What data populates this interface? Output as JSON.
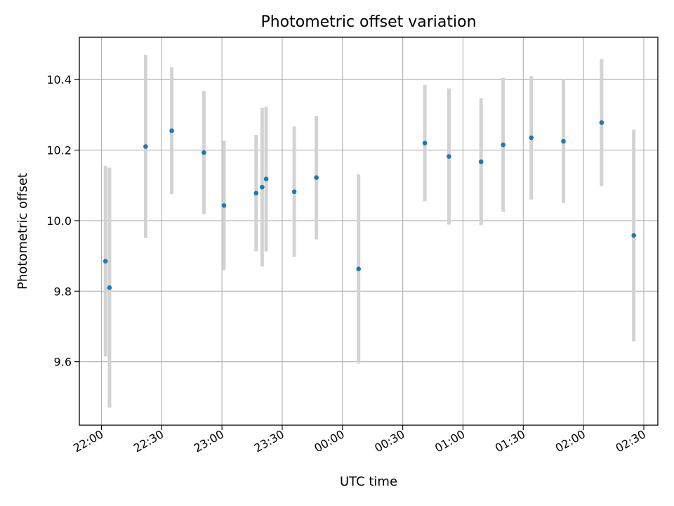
{
  "chart_data": {
    "type": "scatter",
    "title": "Photometric offset variation",
    "xlabel": "UTC time",
    "ylabel": "Photometric offset",
    "x_unit": "UTC time (HH:MM)",
    "x_ticks": [
      "22:00",
      "22:30",
      "23:00",
      "23:30",
      "00:00",
      "00:30",
      "01:00",
      "01:30",
      "02:00",
      "02:30"
    ],
    "y_ticks": [
      9.6,
      9.8,
      10.0,
      10.2,
      10.4
    ],
    "xlim": [
      "21:49",
      "02:37"
    ],
    "ylim": [
      9.42,
      10.52
    ],
    "grid": true,
    "marker_color": "#1f77b4",
    "errorbar_color": "#d3d3d3",
    "points": [
      {
        "time": "22:02",
        "y": 9.885,
        "err": 0.27
      },
      {
        "time": "22:04",
        "y": 9.81,
        "err": 0.34
      },
      {
        "time": "22:22",
        "y": 10.21,
        "err": 0.26
      },
      {
        "time": "22:35",
        "y": 10.255,
        "err": 0.18
      },
      {
        "time": "22:51",
        "y": 10.193,
        "err": 0.175
      },
      {
        "time": "23:01",
        "y": 10.043,
        "err": 0.183
      },
      {
        "time": "23:17",
        "y": 10.078,
        "err": 0.165
      },
      {
        "time": "23:20",
        "y": 10.095,
        "err": 0.225
      },
      {
        "time": "23:22",
        "y": 10.118,
        "err": 0.205
      },
      {
        "time": "23:36",
        "y": 10.082,
        "err": 0.185
      },
      {
        "time": "23:47",
        "y": 10.122,
        "err": 0.175
      },
      {
        "time": "00:08",
        "y": 9.863,
        "err": 0.268
      },
      {
        "time": "00:41",
        "y": 10.22,
        "err": 0.165
      },
      {
        "time": "00:53",
        "y": 10.182,
        "err": 0.193
      },
      {
        "time": "01:09",
        "y": 10.167,
        "err": 0.18
      },
      {
        "time": "01:20",
        "y": 10.215,
        "err": 0.19
      },
      {
        "time": "01:34",
        "y": 10.235,
        "err": 0.175
      },
      {
        "time": "01:50",
        "y": 10.225,
        "err": 0.175
      },
      {
        "time": "02:09",
        "y": 10.278,
        "err": 0.18
      },
      {
        "time": "02:25",
        "y": 9.958,
        "err": 0.3
      }
    ]
  }
}
